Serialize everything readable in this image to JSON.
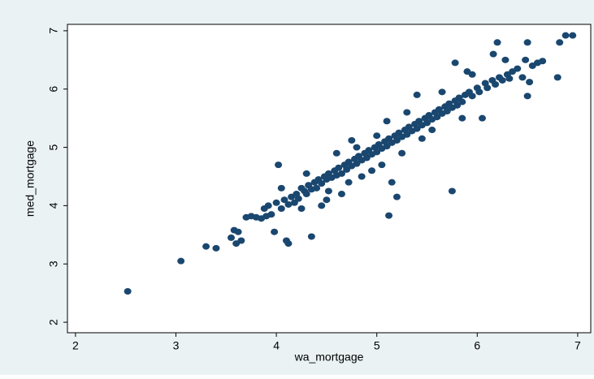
{
  "chart_data": {
    "type": "scatter",
    "xlabel": "wa_mortgage",
    "ylabel": "med_mortgage",
    "xlim": [
      1.92,
      7.13
    ],
    "ylim": [
      1.82,
      7.11
    ],
    "xticks": [
      2,
      3,
      4,
      5,
      6,
      7
    ],
    "yticks": [
      2,
      3,
      4,
      5,
      6,
      7
    ],
    "grid": false,
    "color": "#1a476f",
    "x": [
      2.52,
      3.05,
      3.3,
      3.4,
      3.55,
      3.58,
      3.6,
      3.62,
      3.7,
      3.75,
      3.8,
      3.85,
      3.88,
      3.9,
      3.92,
      3.95,
      3.98,
      4.0,
      4.02,
      4.05,
      4.08,
      4.1,
      4.12,
      4.12,
      4.15,
      4.18,
      4.2,
      4.22,
      4.25,
      4.25,
      4.28,
      4.3,
      4.32,
      4.35,
      4.35,
      4.38,
      4.4,
      4.42,
      4.45,
      4.45,
      4.48,
      4.5,
      4.52,
      4.52,
      4.55,
      4.58,
      4.6,
      4.6,
      4.62,
      4.65,
      4.65,
      4.68,
      4.7,
      4.72,
      4.72,
      4.75,
      4.78,
      4.8,
      4.8,
      4.82,
      4.85,
      4.85,
      4.88,
      4.9,
      4.92,
      4.95,
      4.95,
      4.98,
      5.0,
      5.0,
      5.02,
      5.05,
      5.05,
      5.08,
      5.1,
      5.1,
      5.12,
      5.12,
      5.15,
      5.15,
      5.18,
      5.2,
      5.2,
      5.22,
      5.25,
      5.25,
      5.28,
      5.3,
      5.3,
      5.32,
      5.35,
      5.38,
      5.4,
      5.42,
      5.45,
      5.45,
      5.48,
      5.5,
      5.52,
      5.55,
      5.55,
      5.58,
      5.6,
      5.62,
      5.65,
      5.65,
      5.68,
      5.7,
      5.72,
      5.75,
      5.75,
      5.78,
      5.78,
      5.8,
      5.82,
      5.85,
      5.85,
      5.88,
      5.9,
      5.92,
      5.95,
      6.0,
      6.02,
      6.05,
      6.08,
      6.1,
      6.15,
      6.18,
      6.2,
      6.22,
      6.25,
      6.28,
      6.3,
      6.32,
      6.35,
      6.4,
      6.45,
      6.48,
      6.5,
      6.5,
      6.52,
      6.55,
      6.6,
      6.65,
      6.8,
      6.82,
      6.88,
      6.95,
      6.16,
      5.4,
      4.3,
      4.5,
      3.65,
      4.05,
      4.75,
      5.95
    ],
    "values": [
      2.53,
      3.05,
      3.3,
      3.27,
      3.45,
      3.58,
      3.35,
      3.55,
      3.8,
      3.82,
      3.8,
      3.78,
      3.95,
      3.82,
      4.0,
      3.85,
      3.55,
      4.05,
      4.7,
      3.95,
      4.1,
      3.4,
      3.35,
      4.02,
      4.15,
      4.05,
      4.2,
      4.12,
      4.3,
      3.95,
      4.25,
      4.2,
      4.35,
      3.47,
      4.28,
      4.4,
      4.3,
      4.45,
      4.38,
      4.0,
      4.5,
      4.45,
      4.55,
      4.25,
      4.48,
      4.6,
      4.52,
      4.9,
      4.65,
      4.55,
      4.2,
      4.7,
      4.62,
      4.75,
      4.4,
      4.68,
      4.8,
      4.72,
      5.0,
      4.85,
      4.78,
      4.5,
      4.9,
      4.82,
      4.95,
      4.88,
      4.6,
      5.0,
      4.92,
      5.2,
      5.05,
      4.98,
      4.7,
      5.1,
      5.02,
      5.45,
      3.83,
      5.15,
      5.08,
      4.4,
      5.2,
      5.12,
      4.15,
      5.25,
      5.18,
      4.9,
      5.3,
      5.22,
      5.6,
      5.35,
      5.28,
      5.4,
      5.32,
      5.45,
      5.38,
      5.15,
      5.5,
      5.42,
      5.55,
      5.48,
      5.3,
      5.6,
      5.52,
      5.65,
      5.58,
      5.95,
      5.7,
      5.62,
      5.75,
      4.25,
      5.68,
      6.45,
      5.8,
      5.72,
      5.85,
      5.78,
      5.5,
      5.9,
      6.3,
      5.95,
      5.88,
      6.02,
      5.95,
      5.5,
      6.1,
      6.02,
      6.15,
      6.08,
      6.8,
      6.2,
      6.15,
      6.5,
      6.25,
      6.18,
      6.3,
      6.35,
      6.2,
      6.5,
      6.8,
      5.88,
      6.12,
      6.4,
      6.45,
      6.48,
      6.2,
      6.8,
      6.92,
      6.92,
      6.6,
      5.9,
      4.55,
      4.1,
      3.4,
      4.3,
      5.12,
      6.25
    ]
  }
}
